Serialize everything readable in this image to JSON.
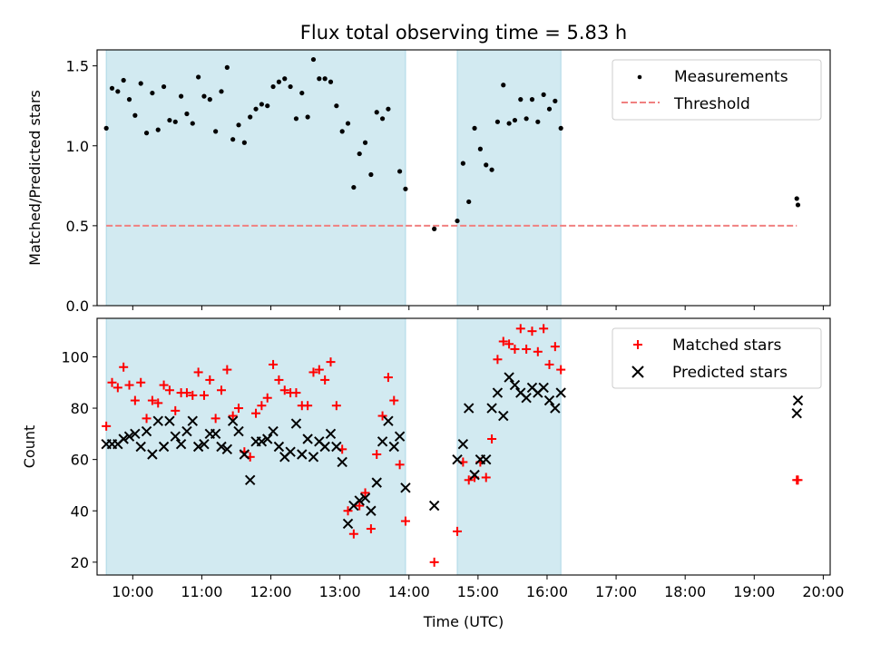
{
  "title": "Flux total observing time = 5.83 h",
  "colors": {
    "shade": "#add8e6",
    "threshold": "#f08080",
    "matched": "#ff0000",
    "predicted": "#000000",
    "measurement": "#000000"
  },
  "chart_data": [
    {
      "type": "scatter",
      "ylabel": "Matched/Predicted stars",
      "xlabel": "",
      "xlim": [
        "09:29",
        "20:06"
      ],
      "ylim": [
        0,
        1.6
      ],
      "yticks": [
        "0.0",
        "0.5",
        "1.0",
        "1.5"
      ],
      "xticks": [
        "10:00",
        "11:00",
        "12:00",
        "13:00",
        "14:00",
        "15:00",
        "16:00",
        "17:00",
        "18:00",
        "19:00",
        "20:00"
      ],
      "shaded_intervals": [
        [
          "09:37",
          "13:57"
        ],
        [
          "14:42",
          "16:12"
        ]
      ],
      "legend": {
        "placement": "top-right",
        "entries": [
          "Measurements",
          "Threshold"
        ]
      },
      "threshold": {
        "name": "Threshold",
        "value": 0.5,
        "x_range": [
          "09:37",
          "19:37"
        ],
        "style": "dashed"
      },
      "series": [
        {
          "name": "Measurements",
          "marker": "dot",
          "points": [
            [
              "09:37",
              1.11
            ],
            [
              "09:42",
              1.36
            ],
            [
              "09:47",
              1.34
            ],
            [
              "09:52",
              1.41
            ],
            [
              "09:57",
              1.29
            ],
            [
              "10:02",
              1.19
            ],
            [
              "10:07",
              1.39
            ],
            [
              "10:12",
              1.08
            ],
            [
              "10:17",
              1.33
            ],
            [
              "10:22",
              1.1
            ],
            [
              "10:27",
              1.37
            ],
            [
              "10:32",
              1.16
            ],
            [
              "10:37",
              1.15
            ],
            [
              "10:42",
              1.31
            ],
            [
              "10:47",
              1.2
            ],
            [
              "10:52",
              1.14
            ],
            [
              "10:57",
              1.43
            ],
            [
              "11:02",
              1.31
            ],
            [
              "11:07",
              1.29
            ],
            [
              "11:12",
              1.09
            ],
            [
              "11:17",
              1.34
            ],
            [
              "11:22",
              1.49
            ],
            [
              "11:27",
              1.04
            ],
            [
              "11:32",
              1.13
            ],
            [
              "11:37",
              1.02
            ],
            [
              "11:42",
              1.18
            ],
            [
              "11:47",
              1.23
            ],
            [
              "11:52",
              1.26
            ],
            [
              "11:57",
              1.25
            ],
            [
              "12:02",
              1.37
            ],
            [
              "12:07",
              1.4
            ],
            [
              "12:12",
              1.42
            ],
            [
              "12:17",
              1.37
            ],
            [
              "12:22",
              1.17
            ],
            [
              "12:27",
              1.33
            ],
            [
              "12:32",
              1.18
            ],
            [
              "12:37",
              1.54
            ],
            [
              "12:42",
              1.42
            ],
            [
              "12:47",
              1.42
            ],
            [
              "12:52",
              1.4
            ],
            [
              "12:57",
              1.25
            ],
            [
              "13:02",
              1.09
            ],
            [
              "13:07",
              1.14
            ],
            [
              "13:12",
              0.74
            ],
            [
              "13:17",
              0.95
            ],
            [
              "13:22",
              1.02
            ],
            [
              "13:27",
              0.82
            ],
            [
              "13:32",
              1.21
            ],
            [
              "13:37",
              1.17
            ],
            [
              "13:42",
              1.23
            ],
            [
              "13:52",
              0.84
            ],
            [
              "13:57",
              0.73
            ],
            [
              "14:22",
              0.48
            ],
            [
              "14:42",
              0.53
            ],
            [
              "14:47",
              0.89
            ],
            [
              "14:52",
              0.65
            ],
            [
              "14:57",
              1.11
            ],
            [
              "15:02",
              0.98
            ],
            [
              "15:07",
              0.88
            ],
            [
              "15:12",
              0.85
            ],
            [
              "15:17",
              1.15
            ],
            [
              "15:22",
              1.38
            ],
            [
              "15:27",
              1.14
            ],
            [
              "15:32",
              1.16
            ],
            [
              "15:37",
              1.29
            ],
            [
              "15:42",
              1.17
            ],
            [
              "15:47",
              1.29
            ],
            [
              "15:52",
              1.15
            ],
            [
              "15:57",
              1.32
            ],
            [
              "16:02",
              1.23
            ],
            [
              "16:07",
              1.28
            ],
            [
              "16:12",
              1.11
            ],
            [
              "19:37",
              0.67
            ],
            [
              "19:38",
              0.63
            ]
          ]
        }
      ]
    },
    {
      "type": "scatter",
      "ylabel": "Count",
      "xlabel": "Time (UTC)",
      "xlim": [
        "09:29",
        "20:06"
      ],
      "ylim": [
        15,
        115
      ],
      "yticks": [
        "20",
        "40",
        "60",
        "80",
        "100"
      ],
      "xticks": [
        "10:00",
        "11:00",
        "12:00",
        "13:00",
        "14:00",
        "15:00",
        "16:00",
        "17:00",
        "18:00",
        "19:00",
        "20:00"
      ],
      "shaded_intervals": [
        [
          "09:37",
          "13:57"
        ],
        [
          "14:42",
          "16:12"
        ]
      ],
      "legend": {
        "placement": "top-right",
        "entries": [
          "Matched stars",
          "Predicted stars"
        ]
      },
      "series": [
        {
          "name": "Matched stars",
          "marker": "plus",
          "points": [
            [
              "09:37",
              73
            ],
            [
              "09:42",
              90
            ],
            [
              "09:47",
              88
            ],
            [
              "09:52",
              96
            ],
            [
              "09:57",
              89
            ],
            [
              "10:02",
              83
            ],
            [
              "10:07",
              90
            ],
            [
              "10:12",
              76
            ],
            [
              "10:17",
              83
            ],
            [
              "10:22",
              82
            ],
            [
              "10:27",
              89
            ],
            [
              "10:32",
              87
            ],
            [
              "10:37",
              79
            ],
            [
              "10:42",
              86
            ],
            [
              "10:47",
              86
            ],
            [
              "10:52",
              85
            ],
            [
              "10:57",
              94
            ],
            [
              "11:02",
              85
            ],
            [
              "11:07",
              91
            ],
            [
              "11:12",
              76
            ],
            [
              "11:17",
              87
            ],
            [
              "11:22",
              95
            ],
            [
              "11:27",
              77
            ],
            [
              "11:32",
              80
            ],
            [
              "11:37",
              63
            ],
            [
              "11:42",
              61
            ],
            [
              "11:47",
              78
            ],
            [
              "11:52",
              81
            ],
            [
              "11:57",
              84
            ],
            [
              "12:02",
              97
            ],
            [
              "12:07",
              91
            ],
            [
              "12:12",
              87
            ],
            [
              "12:17",
              86
            ],
            [
              "12:22",
              86
            ],
            [
              "12:27",
              81
            ],
            [
              "12:32",
              81
            ],
            [
              "12:37",
              94
            ],
            [
              "12:42",
              95
            ],
            [
              "12:47",
              91
            ],
            [
              "12:52",
              98
            ],
            [
              "12:57",
              81
            ],
            [
              "13:02",
              64
            ],
            [
              "13:07",
              40
            ],
            [
              "13:12",
              31
            ],
            [
              "13:17",
              42
            ],
            [
              "13:22",
              47
            ],
            [
              "13:27",
              33
            ],
            [
              "13:32",
              62
            ],
            [
              "13:37",
              77
            ],
            [
              "13:42",
              92
            ],
            [
              "13:47",
              83
            ],
            [
              "13:52",
              58
            ],
            [
              "13:57",
              36
            ],
            [
              "14:22",
              20
            ],
            [
              "14:42",
              32
            ],
            [
              "14:47",
              59
            ],
            [
              "14:52",
              52
            ],
            [
              "14:57",
              53
            ],
            [
              "15:02",
              59
            ],
            [
              "15:07",
              53
            ],
            [
              "15:12",
              68
            ],
            [
              "15:17",
              99
            ],
            [
              "15:22",
              106
            ],
            [
              "15:27",
              105
            ],
            [
              "15:32",
              103
            ],
            [
              "15:37",
              111
            ],
            [
              "15:42",
              103
            ],
            [
              "15:47",
              110
            ],
            [
              "15:52",
              102
            ],
            [
              "15:57",
              111
            ],
            [
              "16:02",
              97
            ],
            [
              "16:07",
              104
            ],
            [
              "16:12",
              95
            ],
            [
              "19:37",
              52
            ],
            [
              "19:38",
              52
            ]
          ]
        },
        {
          "name": "Predicted stars",
          "marker": "x",
          "points": [
            [
              "09:37",
              66
            ],
            [
              "09:42",
              66
            ],
            [
              "09:47",
              66
            ],
            [
              "09:52",
              68
            ],
            [
              "09:57",
              69
            ],
            [
              "10:02",
              70
            ],
            [
              "10:07",
              65
            ],
            [
              "10:12",
              71
            ],
            [
              "10:17",
              62
            ],
            [
              "10:22",
              75
            ],
            [
              "10:27",
              65
            ],
            [
              "10:32",
              75
            ],
            [
              "10:37",
              69
            ],
            [
              "10:42",
              66
            ],
            [
              "10:47",
              71
            ],
            [
              "10:52",
              75
            ],
            [
              "10:57",
              65
            ],
            [
              "11:02",
              66
            ],
            [
              "11:07",
              70
            ],
            [
              "11:12",
              70
            ],
            [
              "11:17",
              65
            ],
            [
              "11:22",
              64
            ],
            [
              "11:27",
              75
            ],
            [
              "11:32",
              71
            ],
            [
              "11:37",
              62
            ],
            [
              "11:42",
              52
            ],
            [
              "11:47",
              67
            ],
            [
              "11:52",
              67
            ],
            [
              "11:57",
              68
            ],
            [
              "12:02",
              71
            ],
            [
              "12:07",
              65
            ],
            [
              "12:12",
              61
            ],
            [
              "12:17",
              63
            ],
            [
              "12:22",
              74
            ],
            [
              "12:27",
              62
            ],
            [
              "12:32",
              68
            ],
            [
              "12:37",
              61
            ],
            [
              "12:42",
              67
            ],
            [
              "12:47",
              65
            ],
            [
              "12:52",
              70
            ],
            [
              "12:57",
              65
            ],
            [
              "13:02",
              59
            ],
            [
              "13:07",
              35
            ],
            [
              "13:12",
              42
            ],
            [
              "13:17",
              44
            ],
            [
              "13:22",
              45
            ],
            [
              "13:27",
              40
            ],
            [
              "13:32",
              51
            ],
            [
              "13:37",
              67
            ],
            [
              "13:42",
              75
            ],
            [
              "13:47",
              65
            ],
            [
              "13:52",
              69
            ],
            [
              "13:57",
              49
            ],
            [
              "14:22",
              42
            ],
            [
              "14:42",
              60
            ],
            [
              "14:47",
              66
            ],
            [
              "14:52",
              80
            ],
            [
              "14:57",
              54
            ],
            [
              "15:02",
              60
            ],
            [
              "15:07",
              60
            ],
            [
              "15:12",
              80
            ],
            [
              "15:17",
              86
            ],
            [
              "15:22",
              77
            ],
            [
              "15:27",
              92
            ],
            [
              "15:32",
              89
            ],
            [
              "15:37",
              86
            ],
            [
              "15:42",
              84
            ],
            [
              "15:47",
              88
            ],
            [
              "15:52",
              86
            ],
            [
              "15:57",
              88
            ],
            [
              "16:02",
              83
            ],
            [
              "16:07",
              80
            ],
            [
              "16:12",
              86
            ],
            [
              "19:37",
              78
            ],
            [
              "19:38",
              83
            ]
          ]
        }
      ]
    }
  ]
}
